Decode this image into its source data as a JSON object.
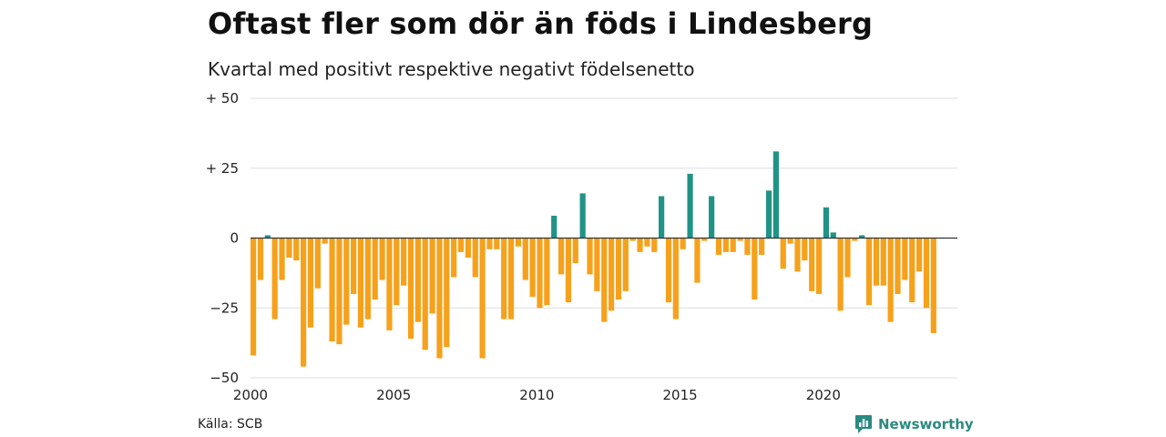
{
  "title": "Oftast fler som dör än föds i Lindesberg",
  "subtitle": "Kvartal med positivt respektive negativt födelsenetto",
  "source": "Källa: SCB",
  "brand": {
    "name": "Newsworthy",
    "icon": "newsworthy-logo-icon"
  },
  "colors": {
    "positive": "#1f9486",
    "negative": "#f6a11b",
    "grid": "#dddddd",
    "zero_line": "#333333"
  },
  "chart_data": {
    "type": "bar",
    "title": "Oftast fler som dör än föds i Lindesberg",
    "subtitle": "Kvartal med positivt respektive negativt födelsenetto",
    "ylim": [
      -50,
      50
    ],
    "y_ticks": [
      {
        "value": 50,
        "label": "+ 50"
      },
      {
        "value": 25,
        "label": "+ 25"
      },
      {
        "value": 0,
        "label": "0"
      },
      {
        "value": -25,
        "label": "−25"
      },
      {
        "value": -50,
        "label": "−50"
      }
    ],
    "x_ticks": [
      {
        "year": 2000,
        "label": "2000"
      },
      {
        "year": 2005,
        "label": "2005"
      },
      {
        "year": 2010,
        "label": "2010"
      },
      {
        "year": 2015,
        "label": "2015"
      },
      {
        "year": 2020,
        "label": "2020"
      }
    ],
    "grid": true,
    "start_year": 2000,
    "periods_per_year": 4,
    "values": [
      -42,
      -15,
      1,
      -29,
      -15,
      -7,
      -8,
      -46,
      -32,
      -18,
      -2,
      -37,
      -38,
      -31,
      -20,
      -32,
      -29,
      -22,
      -15,
      -33,
      -24,
      -17,
      -36,
      -30,
      -40,
      -27,
      -43,
      -39,
      -14,
      -5,
      -7,
      -14,
      -43,
      -4,
      -4,
      -29,
      -29,
      -3,
      -15,
      -21,
      -25,
      -24,
      8,
      -13,
      -23,
      -9,
      16,
      -13,
      -19,
      -30,
      -26,
      -22,
      -19,
      -1,
      -5,
      -3,
      -5,
      15,
      -23,
      -29,
      -4,
      23,
      -16,
      -1,
      15,
      -6,
      -5,
      -5,
      -1,
      -6,
      -22,
      -6,
      17,
      31,
      -11,
      -2,
      -12,
      -8,
      -19,
      -20,
      11,
      2,
      -26,
      -14,
      -1,
      1,
      -24,
      -17,
      -17,
      -30,
      -20,
      -15,
      -23,
      -12,
      -25,
      -34
    ]
  }
}
